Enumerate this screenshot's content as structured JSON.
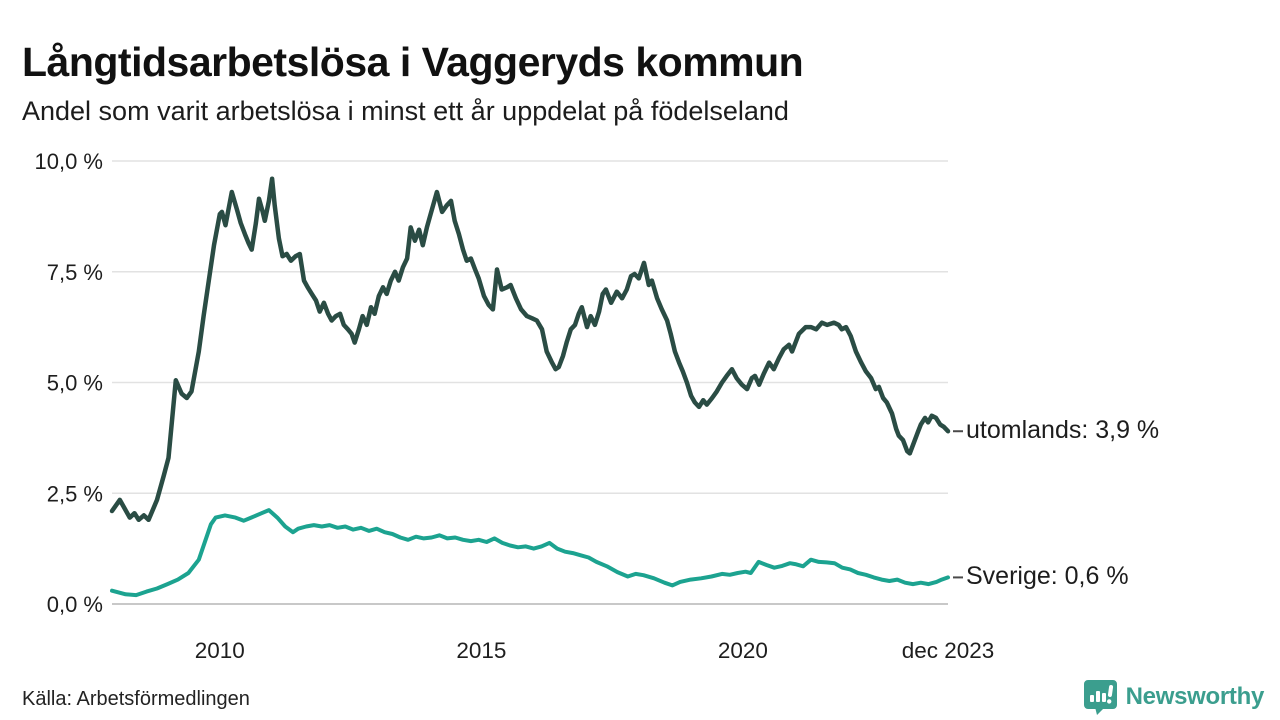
{
  "header": {
    "title": "Långtidsarbetslösa i Vaggeryds kommun",
    "subtitle": "Andel som varit arbetslösa i minst ett år uppdelat på födelseland"
  },
  "footer": {
    "source": "Källa: Arbetsförmedlingen",
    "brand_name": "Newsworthy"
  },
  "colors": {
    "brand_teal": "#3b9e8e",
    "series_abroad": "#2a4c44",
    "series_sweden": "#1ca390",
    "gridline": "#e2e2e2",
    "axis_line": "#c8c8c8",
    "tick_text": "#333333"
  },
  "chart_data": {
    "type": "line",
    "title": "Långtidsarbetslösa i Vaggeryds kommun",
    "subtitle": "Andel som varit arbetslösa i minst ett år uppdelat på födelseland",
    "xlabel": "",
    "ylabel": "",
    "grid": "horizontal",
    "legend_position": "right-end-labels",
    "xlim": [
      2007.94,
      2023.92
    ],
    "ylim": [
      0,
      10
    ],
    "y_ticks": [
      {
        "value": 0,
        "label": "0,0 %"
      },
      {
        "value": 2.5,
        "label": "2,5 %"
      },
      {
        "value": 5,
        "label": "5,0 %"
      },
      {
        "value": 7.5,
        "label": "7,5 %"
      },
      {
        "value": 10,
        "label": "10,0 %"
      }
    ],
    "x_ticks": [
      {
        "value": 2010,
        "label": "2010"
      },
      {
        "value": 2015,
        "label": "2015"
      },
      {
        "value": 2020,
        "label": "2020"
      },
      {
        "value": 2023.92,
        "label": "dec 2023"
      }
    ],
    "series": [
      {
        "name": "utomlands",
        "end_label": "utomlands: 3,9 %",
        "end_value": 3.9,
        "color": "#2a4c44",
        "stroke_width": 4.5,
        "points": [
          [
            2007.94,
            2.1
          ],
          [
            2008.09,
            2.35
          ],
          [
            2008.28,
            1.95
          ],
          [
            2008.37,
            2.05
          ],
          [
            2008.45,
            1.9
          ],
          [
            2008.55,
            2.0
          ],
          [
            2008.64,
            1.9
          ],
          [
            2008.8,
            2.35
          ],
          [
            2008.93,
            2.9
          ],
          [
            2009.02,
            3.3
          ],
          [
            2009.16,
            5.05
          ],
          [
            2009.27,
            4.75
          ],
          [
            2009.37,
            4.65
          ],
          [
            2009.46,
            4.8
          ],
          [
            2009.6,
            5.7
          ],
          [
            2009.69,
            6.5
          ],
          [
            2009.79,
            7.3
          ],
          [
            2009.89,
            8.1
          ],
          [
            2010.0,
            8.8
          ],
          [
            2010.04,
            8.85
          ],
          [
            2010.11,
            8.55
          ],
          [
            2010.23,
            9.3
          ],
          [
            2010.33,
            8.9
          ],
          [
            2010.4,
            8.6
          ],
          [
            2010.48,
            8.35
          ],
          [
            2010.55,
            8.15
          ],
          [
            2010.61,
            8.0
          ],
          [
            2010.69,
            8.6
          ],
          [
            2010.75,
            9.15
          ],
          [
            2010.82,
            8.85
          ],
          [
            2010.86,
            8.65
          ],
          [
            2010.94,
            9.1
          ],
          [
            2011.0,
            9.6
          ],
          [
            2011.05,
            9.0
          ],
          [
            2011.13,
            8.25
          ],
          [
            2011.2,
            7.85
          ],
          [
            2011.28,
            7.9
          ],
          [
            2011.36,
            7.75
          ],
          [
            2011.45,
            7.85
          ],
          [
            2011.53,
            7.9
          ],
          [
            2011.61,
            7.3
          ],
          [
            2011.68,
            7.15
          ],
          [
            2011.76,
            7.0
          ],
          [
            2011.84,
            6.85
          ],
          [
            2011.91,
            6.6
          ],
          [
            2011.99,
            6.8
          ],
          [
            2012.07,
            6.55
          ],
          [
            2012.14,
            6.4
          ],
          [
            2012.22,
            6.5
          ],
          [
            2012.3,
            6.55
          ],
          [
            2012.37,
            6.3
          ],
          [
            2012.45,
            6.2
          ],
          [
            2012.52,
            6.1
          ],
          [
            2012.58,
            5.9
          ],
          [
            2012.66,
            6.2
          ],
          [
            2012.73,
            6.5
          ],
          [
            2012.81,
            6.3
          ],
          [
            2012.89,
            6.7
          ],
          [
            2012.96,
            6.55
          ],
          [
            2013.04,
            6.95
          ],
          [
            2013.12,
            7.15
          ],
          [
            2013.19,
            7.0
          ],
          [
            2013.27,
            7.3
          ],
          [
            2013.35,
            7.5
          ],
          [
            2013.42,
            7.3
          ],
          [
            2013.5,
            7.6
          ],
          [
            2013.58,
            7.8
          ],
          [
            2013.65,
            8.5
          ],
          [
            2013.73,
            8.2
          ],
          [
            2013.81,
            8.45
          ],
          [
            2013.88,
            8.1
          ],
          [
            2013.96,
            8.5
          ],
          [
            2014.03,
            8.8
          ],
          [
            2014.15,
            9.3
          ],
          [
            2014.25,
            8.85
          ],
          [
            2014.34,
            9.0
          ],
          [
            2014.42,
            9.1
          ],
          [
            2014.49,
            8.65
          ],
          [
            2014.57,
            8.35
          ],
          [
            2014.65,
            8.0
          ],
          [
            2014.72,
            7.75
          ],
          [
            2014.8,
            7.8
          ],
          [
            2014.88,
            7.55
          ],
          [
            2014.95,
            7.35
          ],
          [
            2015.05,
            6.95
          ],
          [
            2015.14,
            6.75
          ],
          [
            2015.22,
            6.65
          ],
          [
            2015.3,
            7.55
          ],
          [
            2015.39,
            7.1
          ],
          [
            2015.49,
            7.15
          ],
          [
            2015.56,
            7.2
          ],
          [
            2015.66,
            6.9
          ],
          [
            2015.76,
            6.65
          ],
          [
            2015.87,
            6.5
          ],
          [
            2015.97,
            6.45
          ],
          [
            2016.06,
            6.4
          ],
          [
            2016.16,
            6.2
          ],
          [
            2016.25,
            5.7
          ],
          [
            2016.35,
            5.45
          ],
          [
            2016.42,
            5.3
          ],
          [
            2016.48,
            5.35
          ],
          [
            2016.56,
            5.6
          ],
          [
            2016.63,
            5.9
          ],
          [
            2016.71,
            6.2
          ],
          [
            2016.79,
            6.3
          ],
          [
            2016.86,
            6.55
          ],
          [
            2016.92,
            6.7
          ],
          [
            2017.02,
            6.25
          ],
          [
            2017.09,
            6.5
          ],
          [
            2017.17,
            6.3
          ],
          [
            2017.25,
            6.6
          ],
          [
            2017.32,
            7.0
          ],
          [
            2017.38,
            7.1
          ],
          [
            2017.48,
            6.8
          ],
          [
            2017.59,
            7.05
          ],
          [
            2017.69,
            6.9
          ],
          [
            2017.78,
            7.1
          ],
          [
            2017.86,
            7.4
          ],
          [
            2017.93,
            7.45
          ],
          [
            2018.01,
            7.35
          ],
          [
            2018.11,
            7.7
          ],
          [
            2018.2,
            7.2
          ],
          [
            2018.26,
            7.3
          ],
          [
            2018.36,
            6.9
          ],
          [
            2018.45,
            6.65
          ],
          [
            2018.55,
            6.4
          ],
          [
            2018.62,
            6.1
          ],
          [
            2018.7,
            5.7
          ],
          [
            2018.78,
            5.45
          ],
          [
            2018.85,
            5.25
          ],
          [
            2018.93,
            5.0
          ],
          [
            2019.01,
            4.7
          ],
          [
            2019.08,
            4.55
          ],
          [
            2019.16,
            4.45
          ],
          [
            2019.24,
            4.6
          ],
          [
            2019.31,
            4.5
          ],
          [
            2019.41,
            4.65
          ],
          [
            2019.5,
            4.8
          ],
          [
            2019.6,
            5.0
          ],
          [
            2019.69,
            5.15
          ],
          [
            2019.79,
            5.3
          ],
          [
            2019.88,
            5.1
          ],
          [
            2019.98,
            4.95
          ],
          [
            2020.08,
            4.85
          ],
          [
            2020.17,
            5.1
          ],
          [
            2020.23,
            5.15
          ],
          [
            2020.31,
            4.95
          ],
          [
            2020.4,
            5.2
          ],
          [
            2020.5,
            5.45
          ],
          [
            2020.59,
            5.3
          ],
          [
            2020.69,
            5.55
          ],
          [
            2020.78,
            5.75
          ],
          [
            2020.88,
            5.85
          ],
          [
            2020.94,
            5.7
          ],
          [
            2021.07,
            6.1
          ],
          [
            2021.2,
            6.25
          ],
          [
            2021.3,
            6.25
          ],
          [
            2021.4,
            6.2
          ],
          [
            2021.51,
            6.35
          ],
          [
            2021.61,
            6.3
          ],
          [
            2021.74,
            6.35
          ],
          [
            2021.83,
            6.3
          ],
          [
            2021.89,
            6.2
          ],
          [
            2021.97,
            6.25
          ],
          [
            2022.06,
            6.05
          ],
          [
            2022.16,
            5.7
          ],
          [
            2022.26,
            5.45
          ],
          [
            2022.35,
            5.25
          ],
          [
            2022.45,
            5.1
          ],
          [
            2022.54,
            4.85
          ],
          [
            2022.6,
            4.9
          ],
          [
            2022.68,
            4.65
          ],
          [
            2022.75,
            4.55
          ],
          [
            2022.85,
            4.3
          ],
          [
            2022.93,
            3.95
          ],
          [
            2022.98,
            3.8
          ],
          [
            2023.06,
            3.7
          ],
          [
            2023.14,
            3.45
          ],
          [
            2023.19,
            3.4
          ],
          [
            2023.27,
            3.65
          ],
          [
            2023.35,
            3.9
          ],
          [
            2023.4,
            4.05
          ],
          [
            2023.48,
            4.2
          ],
          [
            2023.54,
            4.1
          ],
          [
            2023.61,
            4.25
          ],
          [
            2023.69,
            4.2
          ],
          [
            2023.77,
            4.05
          ],
          [
            2023.84,
            4.0
          ],
          [
            2023.92,
            3.9
          ]
        ]
      },
      {
        "name": "Sverige",
        "end_label": "Sverige: 0,6 %",
        "end_value": 0.6,
        "color": "#1ca390",
        "stroke_width": 4,
        "points": [
          [
            2007.94,
            0.3
          ],
          [
            2008.2,
            0.22
          ],
          [
            2008.4,
            0.2
          ],
          [
            2008.6,
            0.28
          ],
          [
            2008.8,
            0.35
          ],
          [
            2009.0,
            0.45
          ],
          [
            2009.2,
            0.55
          ],
          [
            2009.4,
            0.7
          ],
          [
            2009.6,
            1.0
          ],
          [
            2009.83,
            1.8
          ],
          [
            2009.92,
            1.95
          ],
          [
            2010.1,
            2.0
          ],
          [
            2010.3,
            1.95
          ],
          [
            2010.46,
            1.88
          ],
          [
            2010.6,
            1.95
          ],
          [
            2010.8,
            2.05
          ],
          [
            2010.94,
            2.12
          ],
          [
            2011.1,
            1.95
          ],
          [
            2011.25,
            1.75
          ],
          [
            2011.4,
            1.62
          ],
          [
            2011.5,
            1.7
          ],
          [
            2011.65,
            1.75
          ],
          [
            2011.8,
            1.78
          ],
          [
            2011.95,
            1.75
          ],
          [
            2012.1,
            1.78
          ],
          [
            2012.25,
            1.72
          ],
          [
            2012.4,
            1.75
          ],
          [
            2012.55,
            1.68
          ],
          [
            2012.7,
            1.72
          ],
          [
            2012.85,
            1.65
          ],
          [
            2013.0,
            1.7
          ],
          [
            2013.15,
            1.62
          ],
          [
            2013.3,
            1.58
          ],
          [
            2013.45,
            1.5
          ],
          [
            2013.6,
            1.45
          ],
          [
            2013.75,
            1.52
          ],
          [
            2013.9,
            1.48
          ],
          [
            2014.05,
            1.5
          ],
          [
            2014.2,
            1.55
          ],
          [
            2014.35,
            1.48
          ],
          [
            2014.5,
            1.5
          ],
          [
            2014.65,
            1.45
          ],
          [
            2014.8,
            1.42
          ],
          [
            2014.95,
            1.45
          ],
          [
            2015.1,
            1.4
          ],
          [
            2015.25,
            1.48
          ],
          [
            2015.4,
            1.38
          ],
          [
            2015.55,
            1.32
          ],
          [
            2015.7,
            1.28
          ],
          [
            2015.85,
            1.3
          ],
          [
            2016.0,
            1.25
          ],
          [
            2016.15,
            1.3
          ],
          [
            2016.3,
            1.38
          ],
          [
            2016.45,
            1.25
          ],
          [
            2016.6,
            1.18
          ],
          [
            2016.75,
            1.15
          ],
          [
            2016.9,
            1.1
          ],
          [
            2017.05,
            1.05
          ],
          [
            2017.2,
            0.95
          ],
          [
            2017.4,
            0.85
          ],
          [
            2017.6,
            0.72
          ],
          [
            2017.8,
            0.62
          ],
          [
            2017.95,
            0.68
          ],
          [
            2018.1,
            0.65
          ],
          [
            2018.3,
            0.58
          ],
          [
            2018.5,
            0.48
          ],
          [
            2018.65,
            0.42
          ],
          [
            2018.8,
            0.5
          ],
          [
            2019.0,
            0.55
          ],
          [
            2019.2,
            0.58
          ],
          [
            2019.4,
            0.62
          ],
          [
            2019.6,
            0.68
          ],
          [
            2019.75,
            0.66
          ],
          [
            2019.9,
            0.7
          ],
          [
            2020.05,
            0.73
          ],
          [
            2020.15,
            0.7
          ],
          [
            2020.3,
            0.95
          ],
          [
            2020.45,
            0.88
          ],
          [
            2020.6,
            0.82
          ],
          [
            2020.75,
            0.86
          ],
          [
            2020.9,
            0.92
          ],
          [
            2021.0,
            0.9
          ],
          [
            2021.15,
            0.85
          ],
          [
            2021.3,
            1.0
          ],
          [
            2021.45,
            0.95
          ],
          [
            2021.6,
            0.94
          ],
          [
            2021.75,
            0.92
          ],
          [
            2021.9,
            0.82
          ],
          [
            2022.05,
            0.78
          ],
          [
            2022.2,
            0.7
          ],
          [
            2022.35,
            0.66
          ],
          [
            2022.5,
            0.6
          ],
          [
            2022.65,
            0.55
          ],
          [
            2022.8,
            0.52
          ],
          [
            2022.95,
            0.55
          ],
          [
            2023.1,
            0.48
          ],
          [
            2023.25,
            0.45
          ],
          [
            2023.4,
            0.48
          ],
          [
            2023.55,
            0.45
          ],
          [
            2023.7,
            0.5
          ],
          [
            2023.8,
            0.55
          ],
          [
            2023.92,
            0.6
          ]
        ]
      }
    ]
  }
}
